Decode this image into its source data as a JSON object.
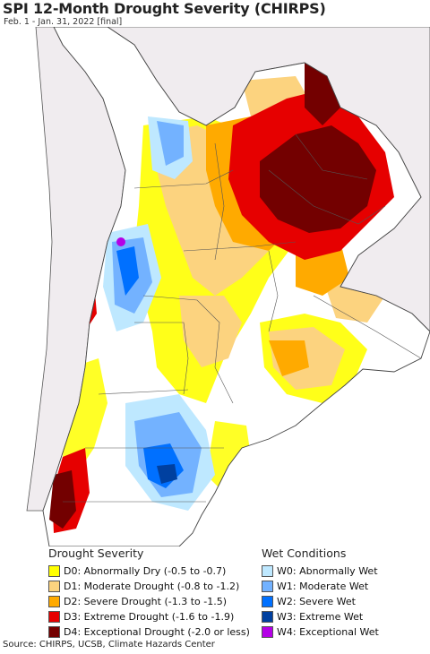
{
  "header": {
    "title": "SPI 12-Month Drought Severity (CHIRPS)",
    "subtitle": "Feb. 1 - Jan. 31, 2022 [final]"
  },
  "colors": {
    "ocean": "#ffffff",
    "land_other": "#f0ecef",
    "no_data": "#ffffff",
    "boundary": "#555555"
  },
  "legend": {
    "drought": {
      "title": "Drought Severity",
      "items": [
        {
          "label": "D0: Abnormally Dry (-0.5 to -0.7)",
          "color": "#ffff00"
        },
        {
          "label": "D1: Moderate Drought (-0.8 to -1.2)",
          "color": "#fcd37f"
        },
        {
          "label": "D2: Severe Drought (-1.3 to -1.5)",
          "color": "#ffaa00"
        },
        {
          "label": "D3: Extreme Drought (-1.6 to -1.9)",
          "color": "#e60000"
        },
        {
          "label": "D4: Exceptional Drought (-2.0 or less)",
          "color": "#730000"
        }
      ]
    },
    "wet": {
      "title": "Wet Conditions",
      "items": [
        {
          "label": "W0: Abnormally Wet",
          "color": "#bee8ff"
        },
        {
          "label": "W1: Moderate Wet",
          "color": "#73b2ff"
        },
        {
          "label": "W2: Severe Wet",
          "color": "#0070ff"
        },
        {
          "label": "W3: Extreme Wet",
          "color": "#0040a0"
        },
        {
          "label": "W4: Exceptional Wet",
          "color": "#b400e6"
        }
      ]
    }
  },
  "footer": {
    "source": "Source: CHIRPS, UCSB, Climate Hazards Center"
  }
}
